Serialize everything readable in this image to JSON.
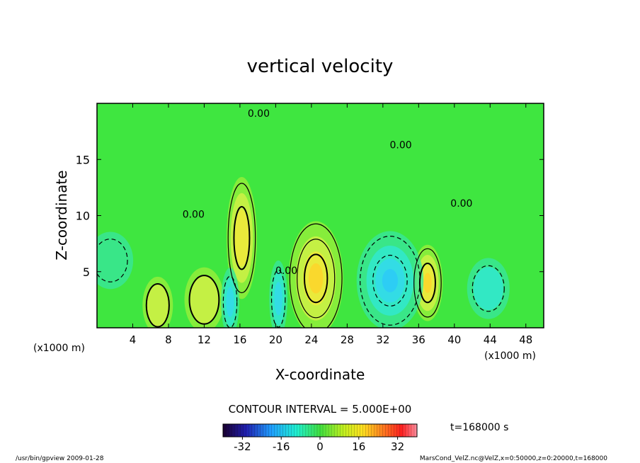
{
  "chart_data": {
    "type": "heatmap",
    "title": "vertical velocity",
    "xlabel": "X-coordinate",
    "ylabel": "Z-coordinate",
    "x_unit_label_left": "(x1000 m)",
    "x_unit_label_right": "(x1000 m)",
    "xlim": [
      0,
      50
    ],
    "ylim": [
      0,
      20
    ],
    "x_ticks": [
      "4",
      "8",
      "12",
      "16",
      "20",
      "24",
      "28",
      "32",
      "36",
      "40",
      "44",
      "48"
    ],
    "x_tick_values": [
      4,
      8,
      12,
      16,
      20,
      24,
      28,
      32,
      36,
      40,
      44,
      48
    ],
    "y_ticks": [
      "5",
      "10",
      "15"
    ],
    "y_tick_values": [
      5,
      10,
      15
    ],
    "zero_contour_labels": [
      {
        "text": "0.00",
        "x": 18.1,
        "z": 18.8
      },
      {
        "text": "0.00",
        "x": 34.0,
        "z": 16.0
      },
      {
        "text": "0.00",
        "x": 10.8,
        "z": 9.8
      },
      {
        "text": "0.00",
        "x": 21.2,
        "z": 4.8
      },
      {
        "text": "0.00",
        "x": 40.8,
        "z": 10.8
      }
    ],
    "features": [
      {
        "kind": "updraft",
        "x": 24.5,
        "z": 4.4,
        "peak": 15,
        "sx": 1.8,
        "sz": 3.0
      },
      {
        "kind": "updraft",
        "x": 16.2,
        "z": 8.0,
        "peak": 10,
        "sx": 1.0,
        "sz": 3.2
      },
      {
        "kind": "updraft",
        "x": 37.0,
        "z": 4.0,
        "peak": 12,
        "sx": 1.0,
        "sz": 2.0
      },
      {
        "kind": "updraft",
        "x": 6.8,
        "z": 2.0,
        "peak": 7,
        "sx": 1.0,
        "sz": 1.5
      },
      {
        "kind": "updraft",
        "x": 12.0,
        "z": 2.5,
        "peak": 6,
        "sx": 1.3,
        "sz": 1.7
      },
      {
        "kind": "downdraft",
        "x": 32.8,
        "z": 4.2,
        "peak": -13,
        "sx": 2.2,
        "sz": 2.6
      },
      {
        "kind": "downdraft",
        "x": 14.9,
        "z": 2.3,
        "peak": -8,
        "sx": 0.6,
        "sz": 1.8
      },
      {
        "kind": "downdraft",
        "x": 20.3,
        "z": 2.6,
        "peak": -9,
        "sx": 0.6,
        "sz": 2.0
      },
      {
        "kind": "downdraft",
        "x": 43.8,
        "z": 3.5,
        "peak": -7,
        "sx": 1.4,
        "sz": 1.6
      },
      {
        "kind": "downdraft",
        "x": 1.5,
        "z": 6.0,
        "peak": -3,
        "sx": 1.5,
        "sz": 1.5
      }
    ]
  },
  "footer": {
    "contour_interval": "CONTOUR INTERVAL = 5.000E+00",
    "time_label": "t=168000 s",
    "colorbar_ticks": [
      "-32",
      "-16",
      "0",
      "16",
      "32"
    ],
    "colorbar_tick_values": [
      -32,
      -16,
      0,
      16,
      32
    ],
    "colorbar_range": [
      -40,
      40
    ],
    "program_info": "/usr/bin/gpview  2009-01-28",
    "file_info": "MarsCond_VelZ.nc@VelZ,x=0:50000,z=0:20000,t=168000"
  },
  "colors": {
    "background": "#ffffff",
    "field_base": "#3fe640",
    "contour": "#000000"
  }
}
